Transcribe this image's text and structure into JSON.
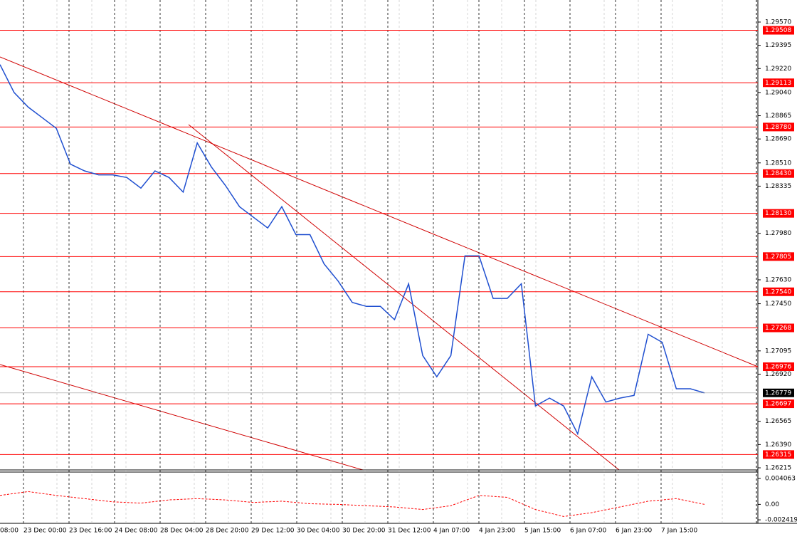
{
  "chart_data": {
    "type": "line",
    "x_axis_labels": [
      "08:00",
      "23 Dec 00:00",
      "23 Dec 16:00",
      "24 Dec 08:00",
      "28 Dec 04:00",
      "28 Dec 20:00",
      "29 Dec 12:00",
      "30 Dec 04:00",
      "30 Dec 20:00",
      "31 Dec 12:00",
      "4 Jan 07:00",
      "4 Jan 23:00",
      "5 Jan 15:00",
      "6 Jan 07:00",
      "6 Jan 23:00",
      "7 Jan 15:00"
    ],
    "ylim": [
      1.26199,
      1.29736
    ],
    "yticks": [
      {
        "value": 1.2957,
        "label": "1.29570"
      },
      1.29395,
      {
        "value": 1.2922,
        "label": "1.29220"
      },
      {
        "value": 1.2904,
        "label": "1.29040"
      },
      1.28865,
      {
        "value": 1.2869,
        "label": "1.28690"
      },
      {
        "value": 1.2851,
        "label": "1.28510"
      },
      1.28335,
      {
        "value": 1.2798,
        "label": "1.27980"
      },
      {
        "value": 1.2763,
        "label": "1.27630"
      },
      {
        "value": 1.2745,
        "label": "1.27450"
      },
      1.27095,
      {
        "value": 1.2692,
        "label": "1.26920"
      },
      1.26565,
      {
        "value": 1.2639,
        "label": "1.26390"
      },
      1.26215
    ],
    "levels": [
      1.29508,
      1.29113,
      {
        "value": 1.2878,
        "label": "1.28780"
      },
      {
        "value": 1.2843,
        "label": "1.28430"
      },
      {
        "value": 1.2813,
        "label": "1.28130"
      },
      1.27805,
      {
        "value": 1.2754,
        "label": "1.27540"
      },
      1.27268,
      1.26976,
      1.26697,
      1.26315
    ],
    "level_color": "#ff0000",
    "current_price": 1.26779,
    "series": [
      {
        "color": "#1f4fd0",
        "values": [
          1.2925,
          1.2904,
          1.2893,
          1.2885,
          1.2877,
          1.285,
          1.2845,
          1.2842,
          1.2842,
          1.284,
          1.2832,
          1.2845,
          1.284,
          1.2829,
          1.2866,
          1.2848,
          1.2834,
          1.2818,
          1.281,
          1.2802,
          1.2818,
          1.2797,
          1.2797,
          1.2775,
          1.2762,
          1.2746,
          1.2743,
          1.2743,
          1.2733,
          1.276,
          1.2706,
          1.269,
          1.2706,
          1.2781,
          1.2781,
          1.2749,
          1.2749,
          1.276,
          1.2668,
          1.2674,
          1.2668,
          1.2647,
          1.269,
          1.2671,
          1.2674,
          1.2676,
          1.2722,
          1.2716,
          1.2681,
          1.2681,
          1.26779
        ]
      }
    ],
    "oscillator": {
      "ylim": [
        -0.002965,
        0.005051
      ],
      "yticks": [
        0.004063,
        {
          "value": 0,
          "label": "0.00"
        },
        -0.002419
      ],
      "color": "#ff0000",
      "values": [
        0.0014,
        0.002,
        0.0014,
        0.0009,
        0.0004,
        0.0002,
        0.0007,
        0.0009,
        0.0007,
        0.0003,
        0.0005,
        0.0001,
        0.0,
        -0.0002,
        -0.0004,
        -0.0008,
        -0.0002,
        0.0014,
        0.0011,
        -0.0008,
        -0.0019,
        -0.0013,
        -0.0004,
        0.0005,
        0.0009,
        0.0
      ]
    }
  }
}
